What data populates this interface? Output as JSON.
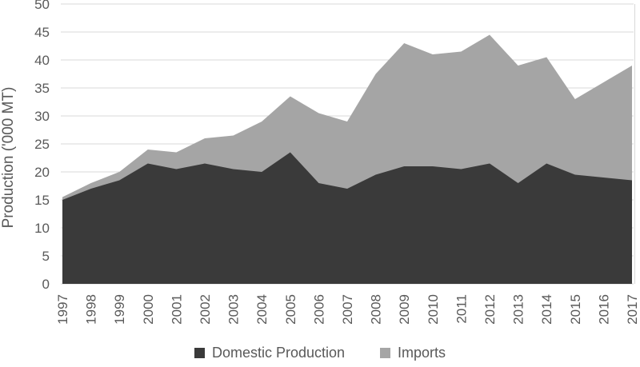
{
  "chart_data": {
    "type": "area",
    "stacked": true,
    "title": "",
    "xlabel": "",
    "ylabel": "Production ('000 MT)",
    "x": [
      "1997",
      "1998",
      "1999",
      "2000",
      "2001",
      "2002",
      "2003",
      "2004",
      "2005",
      "2006",
      "2007",
      "2008",
      "2009",
      "2010",
      "2011",
      "2012",
      "2013",
      "2014",
      "2015",
      "2016",
      "2017"
    ],
    "series": [
      {
        "name": "Domestic Production",
        "color": "#3a3a3a",
        "values": [
          15,
          17,
          18.5,
          21.5,
          20.5,
          21.5,
          20.5,
          20,
          23.5,
          18,
          17,
          19.5,
          21,
          21,
          20.5,
          21.5,
          18,
          21.5,
          19.5,
          19,
          18.5
        ]
      },
      {
        "name": "Imports",
        "color": "#a5a5a5",
        "values": [
          0.5,
          1,
          1.5,
          2.5,
          3,
          4.5,
          6,
          9,
          10,
          12.5,
          12,
          18,
          22,
          20,
          21,
          23,
          21,
          19,
          13.5,
          17,
          20.5
        ]
      }
    ],
    "ylim": [
      0,
      50
    ],
    "yticks": [
      0,
      5,
      10,
      15,
      20,
      25,
      30,
      35,
      40,
      45,
      50
    ],
    "grid": "horizontal",
    "grid_color": "#d9d9d9",
    "tick_label_color": "#595959",
    "legend_position": "bottom-center"
  }
}
